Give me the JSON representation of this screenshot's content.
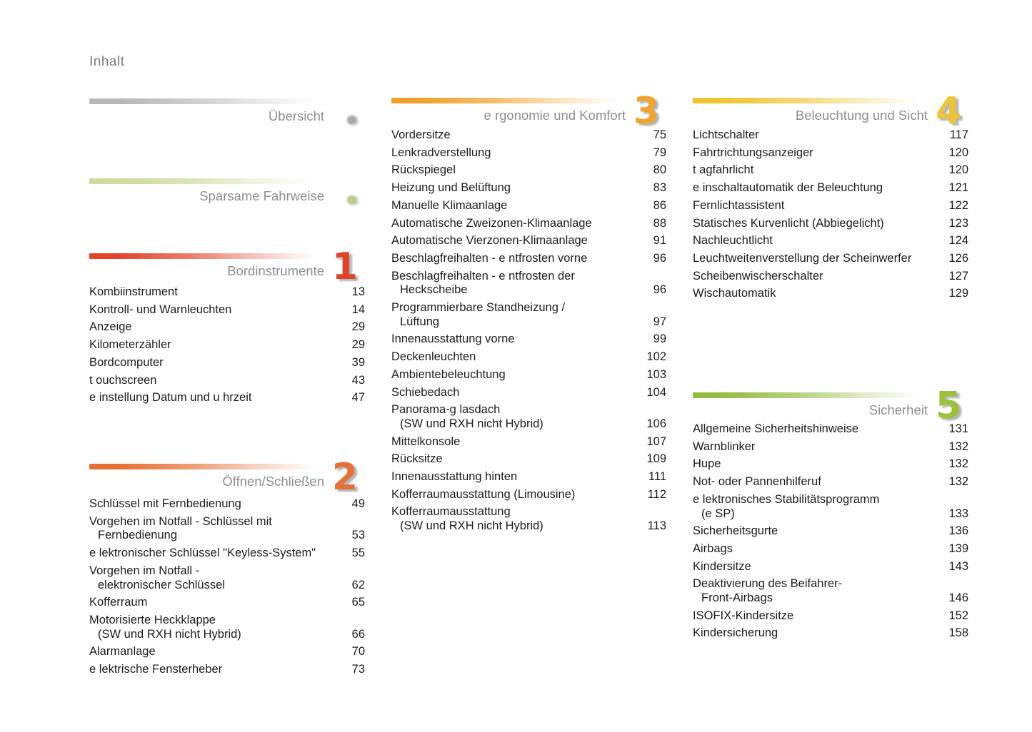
{
  "page": {
    "title": "Inhalt"
  },
  "sections": [
    {
      "id": "uebersicht",
      "title": "Übersicht",
      "bar_color": "#b7b7b7",
      "marker_color": "#a8a8a8",
      "items": []
    },
    {
      "id": "sparsame-fahrweise",
      "title": "Sparsame Fahrweise",
      "bar_color": "#c9dc9a",
      "marker_color": "#b7ce83",
      "items": []
    },
    {
      "id": "bordinstrumente",
      "title": "Bordinstrumente",
      "number": "1",
      "bar_color": "#e2432b",
      "number_color": "#e0432c",
      "items": [
        {
          "label": "Kombiinstrument",
          "page": "13"
        },
        {
          "label": "Kontroll- und Warnleuchten",
          "page": "14"
        },
        {
          "label": "Anzeige",
          "page": "29"
        },
        {
          "label": "Kilometerzähler",
          "page": "29"
        },
        {
          "label": "Bordcomputer",
          "page": "39"
        },
        {
          "label": "t ouchscreen",
          "page": "43"
        },
        {
          "label": "e instellung Datum und u hrzeit",
          "page": "47"
        }
      ]
    },
    {
      "id": "oeffnen-schliessen",
      "title": "Öffnen/Schließen",
      "number": "2",
      "bar_color": "#e56f35",
      "number_color": "#e2713b",
      "items": [
        {
          "label": "Schlüssel mit Fernbedienung",
          "page": "49"
        },
        {
          "label": "Vorgehen im Notfall - Schlüssel mit",
          "label2": "Fernbedienung",
          "page": "53"
        },
        {
          "label": "e lektronischer Schlüssel \"Keyless-System\"",
          "page": "55"
        },
        {
          "label": "Vorgehen im Notfall -",
          "label2": "elektronischer Schlüssel",
          "page": "62"
        },
        {
          "label": "Kofferraum",
          "page": "65"
        },
        {
          "label": "Motorisierte Heckklappe",
          "label2": "(SW und RXH nicht Hybrid)",
          "page": "66"
        },
        {
          "label": "Alarmanlage",
          "page": "70"
        },
        {
          "label": "e lektrische Fensterheber",
          "page": "73"
        }
      ]
    },
    {
      "id": "ergonomie-und-komfort",
      "title": "e rgonomie und Komfort",
      "number": "3",
      "bar_color": "#f0a02a",
      "number_color": "#efa52f",
      "items": [
        {
          "label": "Vordersitze",
          "page": "75"
        },
        {
          "label": "Lenkradverstellung",
          "page": "79"
        },
        {
          "label": "Rückspiegel",
          "page": "80"
        },
        {
          "label": "Heizung und Belüftung",
          "page": "83"
        },
        {
          "label": "Manuelle Klimaanlage",
          "page": "86"
        },
        {
          "label": "Automatische Zweizonen-Klimaanlage",
          "page": "88"
        },
        {
          "label": "Automatische Vierzonen-Klimaanlage",
          "page": "91"
        },
        {
          "label": "Beschlagfreihalten - e ntfrosten vorne",
          "page": "96"
        },
        {
          "label": "Beschlagfreihalten - e ntfrosten der",
          "label2": "Heckscheibe",
          "page": "96"
        },
        {
          "label": "Programmierbare Standheizung /",
          "label2": "Lüftung",
          "page": "97"
        },
        {
          "label": "Innenausstattung vorne",
          "page": "99"
        },
        {
          "label": "Deckenleuchten",
          "page": "102"
        },
        {
          "label": "Ambientebeleuchtung",
          "page": "103"
        },
        {
          "label": "Schiebedach",
          "page": "104"
        },
        {
          "label": "Panorama-g lasdach",
          "label2": "(SW und RXH nicht Hybrid)",
          "page": "106"
        },
        {
          "label": "Mittelkonsole",
          "page": "107"
        },
        {
          "label": "Rücksitze",
          "page": "109"
        },
        {
          "label": "Innenausstattung hinten",
          "page": "111"
        },
        {
          "label": "Kofferraumausstattung (Limousine)",
          "page": "112"
        },
        {
          "label": "Kofferraumausstattung",
          "label2": "(SW und RXH nicht Hybrid)",
          "page": "113"
        }
      ]
    },
    {
      "id": "beleuchtung-und-sicht",
      "title": "Beleuchtung und Sicht",
      "number": "4",
      "bar_color": "#eec432",
      "number_color": "#ecc53d",
      "items": [
        {
          "label": "Lichtschalter",
          "page": "117"
        },
        {
          "label": "Fahrtrichtungsanzeiger",
          "page": "120"
        },
        {
          "label": "t agfahrlicht",
          "page": "120"
        },
        {
          "label": "e inschaltautomatik der Beleuchtung",
          "page": "121"
        },
        {
          "label": "Fernlichtassistent",
          "page": "122"
        },
        {
          "label": "Statisches Kurvenlicht (Abbiegelicht)",
          "page": "123"
        },
        {
          "label": "Nachleuchtlicht",
          "page": "124"
        },
        {
          "label": "Leuchtweitenverstellung der Scheinwerfer",
          "page": "126"
        },
        {
          "label": "Scheibenwischerschalter",
          "page": "127"
        },
        {
          "label": "Wischautomatik",
          "page": "129"
        }
      ]
    },
    {
      "id": "sicherheit",
      "title": "Sicherheit",
      "number": "5",
      "bar_color": "#92bc42",
      "number_color": "#9cc13c",
      "items": [
        {
          "label": "Allgemeine Sicherheitshinweise",
          "page": "131"
        },
        {
          "label": "Warnblinker",
          "page": "132"
        },
        {
          "label": "Hupe",
          "page": "132"
        },
        {
          "label": "Not- oder Pannenhilferuf",
          "page": "132"
        },
        {
          "label": "e lektronisches Stabilitätsprogramm",
          "label2": "(e SP)",
          "page": "133"
        },
        {
          "label": "Sicherheitsgurte",
          "page": "136"
        },
        {
          "label": "Airbags",
          "page": "139"
        },
        {
          "label": "Kindersitze",
          "page": "143"
        },
        {
          "label": "Deaktivierung des Beifahrer-",
          "label2": "Front-Airbags",
          "page": "146"
        },
        {
          "label": "ISOFIX-Kindersitze",
          "page": "152"
        },
        {
          "label": "Kindersicherung",
          "page": "158"
        }
      ]
    }
  ]
}
